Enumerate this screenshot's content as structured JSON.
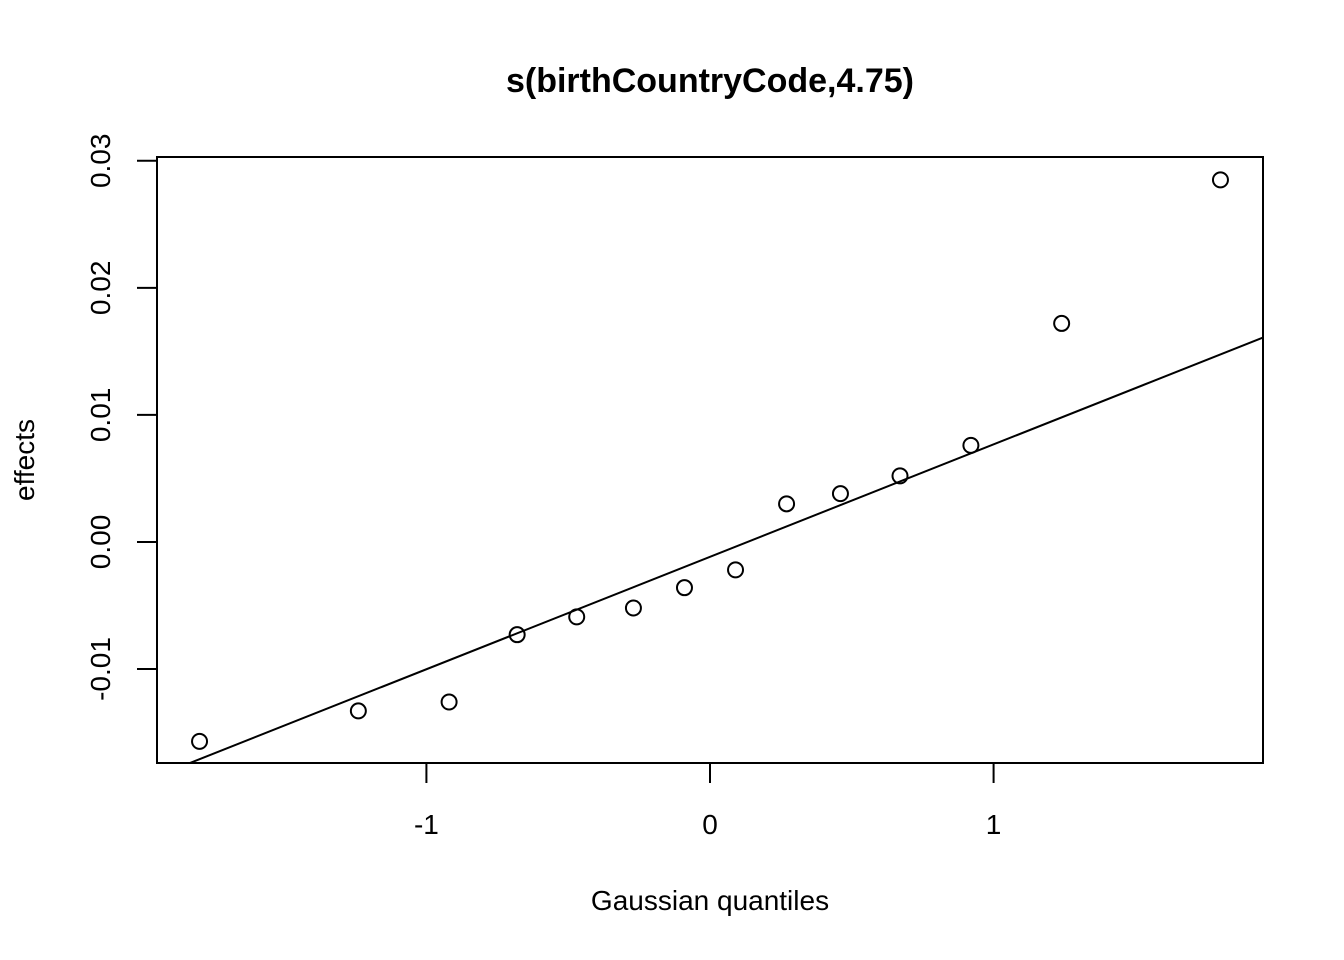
{
  "chart_data": {
    "type": "scatter",
    "title": "s(birthCountryCode,4.75)",
    "xlabel": "Gaussian quantiles",
    "ylabel": "effects",
    "xlim": [
      -1.95,
      1.95
    ],
    "ylim": [
      -0.0174,
      0.0303
    ],
    "x_ticks": [
      -1,
      0,
      1
    ],
    "x_tick_labels": [
      "-1",
      "0",
      "1"
    ],
    "y_ticks": [
      -0.01,
      0.0,
      0.01,
      0.02,
      0.03
    ],
    "y_tick_labels": [
      "-0.01",
      "0.00",
      "0.01",
      "0.02",
      "0.03"
    ],
    "grid": false,
    "legend": "none",
    "point_style": "open-circle",
    "colors": {
      "points": "#000000",
      "line": "#000000",
      "axis": "#000000"
    },
    "points": [
      {
        "x": -1.8,
        "y": -0.0157
      },
      {
        "x": -1.24,
        "y": -0.0133
      },
      {
        "x": -0.92,
        "y": -0.0126
      },
      {
        "x": -0.68,
        "y": -0.0073
      },
      {
        "x": -0.47,
        "y": -0.0059
      },
      {
        "x": -0.27,
        "y": -0.0052
      },
      {
        "x": -0.09,
        "y": -0.0036
      },
      {
        "x": 0.09,
        "y": -0.0022
      },
      {
        "x": 0.27,
        "y": 0.003
      },
      {
        "x": 0.46,
        "y": 0.0038
      },
      {
        "x": 0.67,
        "y": 0.0052
      },
      {
        "x": 0.92,
        "y": 0.0076
      },
      {
        "x": 1.24,
        "y": 0.0172
      },
      {
        "x": 1.8,
        "y": 0.0285
      }
    ],
    "reference_line": {
      "intercept": -0.00117,
      "slope": 0.00885
    }
  }
}
